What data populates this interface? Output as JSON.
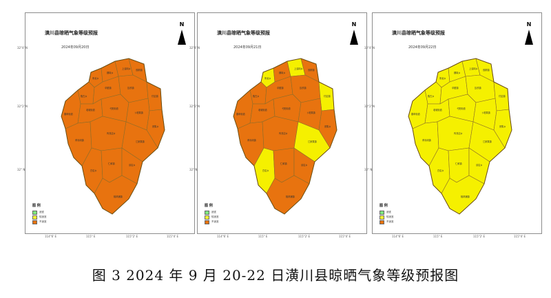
{
  "maps": [
    {
      "title": "潢川县晾晒气象等级预报",
      "date": "2024年09月20日",
      "regions": [
        "orange",
        "orange",
        "orange",
        "orange",
        "orange",
        "orange",
        "orange",
        "orange",
        "orange",
        "orange",
        "orange",
        "orange",
        "orange",
        "orange",
        "orange",
        "orange",
        "orange",
        "orange",
        "orange",
        "orange"
      ]
    },
    {
      "title": "潢川县晾晒气象等级预报",
      "date": "2024年09月21日",
      "regions": [
        "yellow",
        "orange",
        "yellow",
        "orange",
        "orange",
        "orange",
        "orange",
        "yellow",
        "orange",
        "orange",
        "orange",
        "orange",
        "orange",
        "orange",
        "orange",
        "yellow",
        "yellow",
        "orange",
        "orange",
        "orange"
      ]
    },
    {
      "title": "潢川县晾晒气象等级预报",
      "date": "2024年09月22日",
      "regions": [
        "yellow",
        "yellow",
        "yellow",
        "yellow",
        "yellow",
        "yellow",
        "yellow",
        "yellow",
        "yellow",
        "yellow",
        "yellow",
        "yellow",
        "yellow",
        "yellow",
        "yellow",
        "yellow",
        "yellow",
        "yellow",
        "yellow",
        "yellow"
      ]
    }
  ],
  "north_label": "N",
  "lat_ticks": [
    "32°4' N",
    "32°2' N",
    "32° N"
  ],
  "lon_ticks": [
    "114°6' E",
    "115° E",
    "115°2' E",
    "115°4' E"
  ],
  "legend": {
    "title": "图 例",
    "items": [
      {
        "label": "适宜",
        "color": "#7fe87f"
      },
      {
        "label": "较适宜",
        "color": "#ffff33"
      },
      {
        "label": "不适宜",
        "color": "#e8730f"
      }
    ]
  },
  "colors": {
    "orange": "#e8730f",
    "yellow": "#f5f000",
    "border": "#8a6d2a"
  },
  "town_labels": [
    "来龙乡",
    "魏岗乡",
    "上油岗乡",
    "双柳镇",
    "隆古乡",
    "伞陂镇",
    "踅孜镇",
    "付店镇",
    "春申街道",
    "老城街道",
    "弋阳街道",
    "卜塔集镇",
    "张集乡",
    "黄寺岗镇",
    "传流店乡",
    "江家集镇",
    "白店乡",
    "仁和镇",
    "谈店乡",
    "桃林铺镇"
  ],
  "caption": "图 3  2024 年 9 月 20-22 日潢川县晾晒气象等级预报图"
}
